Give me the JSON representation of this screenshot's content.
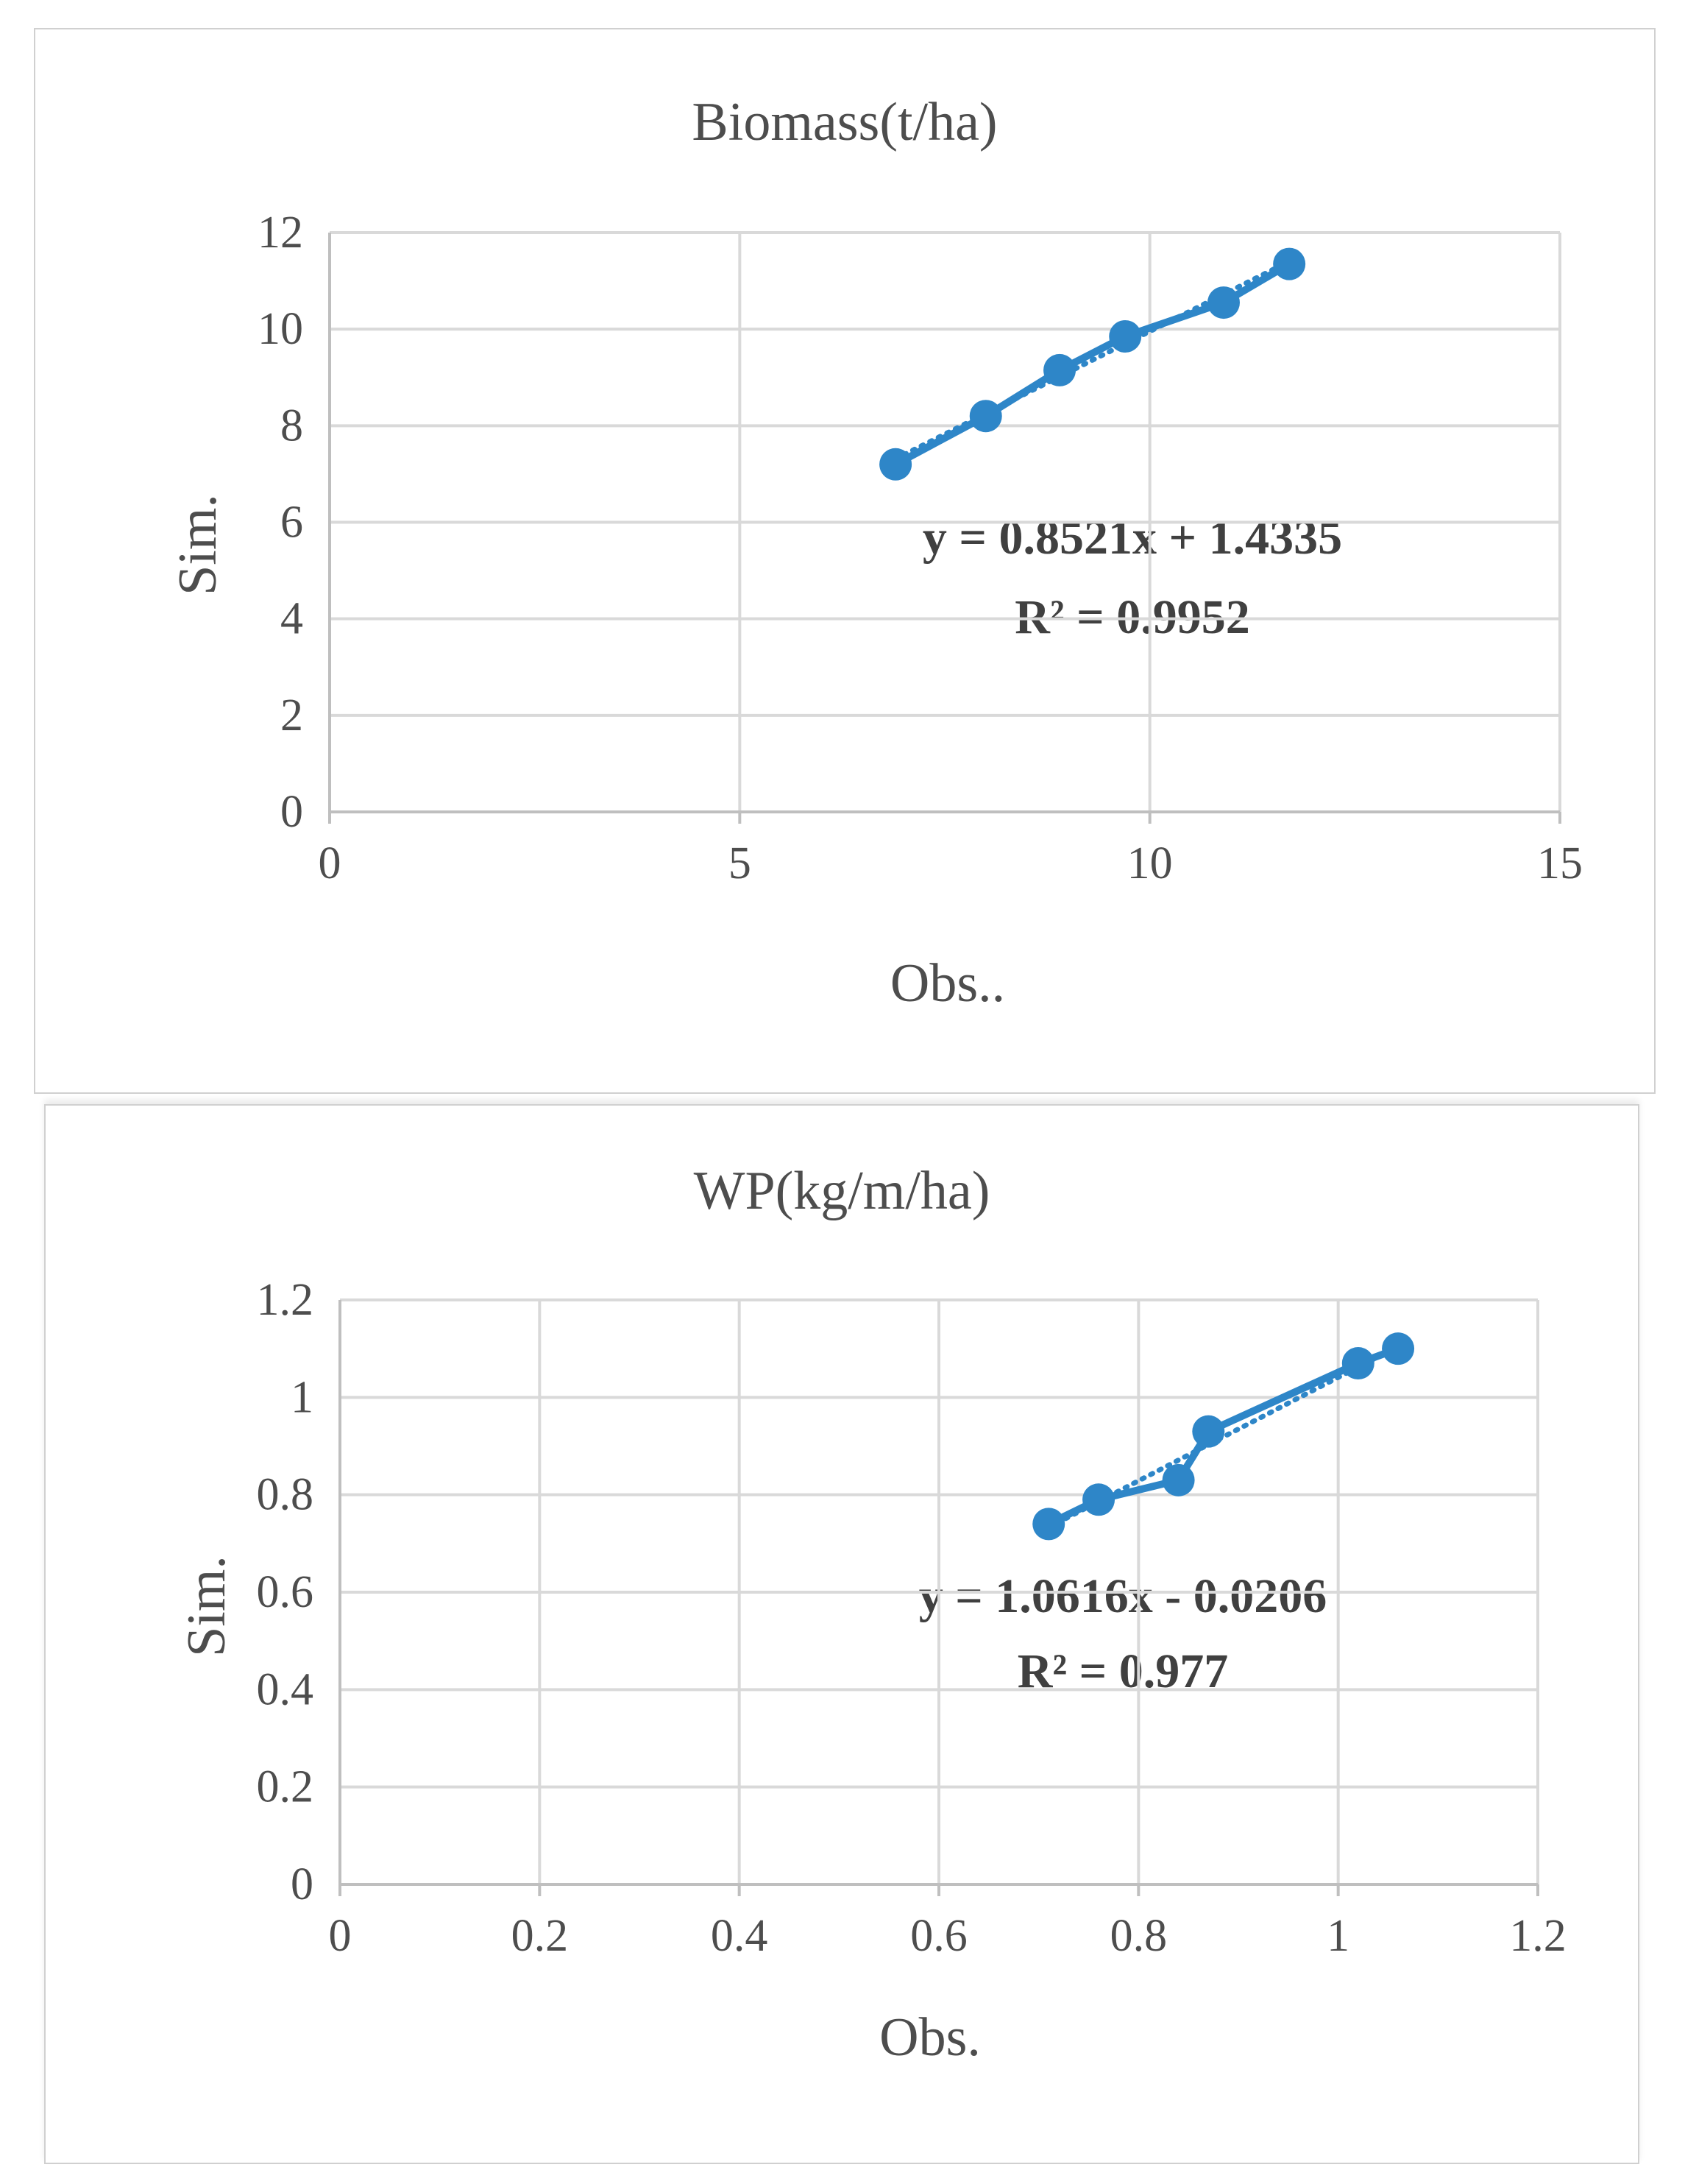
{
  "chart_data": [
    {
      "type": "scatter",
      "title": "Biomass(t/ha)",
      "xlabel": "Obs..",
      "ylabel": "Sim.",
      "xlim": [
        0,
        15
      ],
      "ylim": [
        0,
        12
      ],
      "xticks": [
        "0",
        "5",
        "10",
        "15"
      ],
      "yticks": [
        "0",
        "2",
        "4",
        "6",
        "8",
        "10",
        "12"
      ],
      "grid": true,
      "series": [
        {
          "x": [
            6.9,
            8.0,
            8.9,
            9.7,
            10.9,
            11.7
          ],
          "y": [
            7.2,
            8.2,
            9.15,
            9.85,
            10.55,
            11.35
          ],
          "color": "#2e86c8",
          "markers": true,
          "connected": true
        }
      ],
      "trendline": {
        "slope": 0.8521,
        "intercept": 1.4335,
        "style": "dotted",
        "color": "#2e86c8"
      },
      "annotations": [
        "y = 0.8521x + 1.4335",
        "R² = 0.9952"
      ]
    },
    {
      "type": "scatter",
      "title": "WP(kg/m/ha)",
      "xlabel": "Obs.",
      "ylabel": "Sim.",
      "xlim": [
        0,
        1.2
      ],
      "ylim": [
        0,
        1.2
      ],
      "xticks": [
        "0",
        "0.2",
        "0.4",
        "0.6",
        "0.8",
        "1",
        "1.2"
      ],
      "yticks": [
        "0",
        "0.2",
        "0.4",
        "0.6",
        "0.8",
        "1",
        "1.2"
      ],
      "grid": true,
      "series": [
        {
          "x": [
            0.71,
            0.76,
            0.84,
            0.87,
            1.02,
            1.06
          ],
          "y": [
            0.74,
            0.79,
            0.83,
            0.93,
            1.07,
            1.1
          ],
          "color": "#2e86c8",
          "markers": true,
          "connected": true
        }
      ],
      "trendline": {
        "slope": 1.0616,
        "intercept": -0.0206,
        "style": "dotted",
        "color": "#2e86c8"
      },
      "annotations": [
        "y = 1.0616x - 0.0206",
        "R² = 0.977"
      ]
    }
  ]
}
